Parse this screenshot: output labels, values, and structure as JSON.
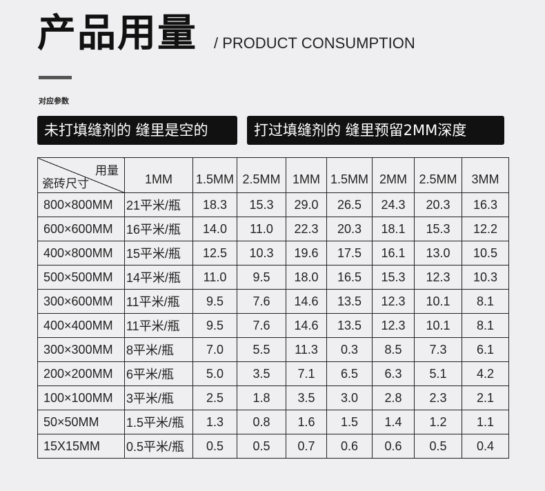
{
  "header": {
    "title": "产品用量",
    "subtitle": "/ PRODUCT CONSUMPTION",
    "params_label": "对应参数"
  },
  "tags": {
    "left": "未打填缝剂的 缝里是空的",
    "right": "打过填缝剂的 缝里预留2MM深度"
  },
  "table": {
    "corner_top": "用量",
    "corner_bottom": "瓷砖尺寸",
    "columns": [
      "1MM",
      "1.5MM",
      "2.5MM",
      "1MM",
      "1.5MM",
      "2MM",
      "2.5MM",
      "3MM"
    ],
    "rows": [
      {
        "size": "800×800MM",
        "cells": [
          "21平米/瓶",
          "18.3",
          "15.3",
          "29.0",
          "26.5",
          "24.3",
          "20.3",
          "16.3"
        ]
      },
      {
        "size": "600×600MM",
        "cells": [
          "16平米/瓶",
          "14.0",
          "11.0",
          "22.3",
          "20.3",
          "18.1",
          "15.3",
          "12.2"
        ]
      },
      {
        "size": "400×800MM",
        "cells": [
          "15平米/瓶",
          "12.5",
          "10.3",
          "19.6",
          "17.5",
          "16.1",
          "13.0",
          "10.5"
        ]
      },
      {
        "size": "500×500MM",
        "cells": [
          "14平米/瓶",
          "11.0",
          "9.5",
          "18.0",
          "16.5",
          "15.3",
          "12.3",
          "10.3"
        ]
      },
      {
        "size": "300×600MM",
        "cells": [
          "11平米/瓶",
          "9.5",
          "7.6",
          "14.6",
          "13.5",
          "12.3",
          "10.1",
          "8.1"
        ]
      },
      {
        "size": "400×400MM",
        "cells": [
          "11平米/瓶",
          "9.5",
          "7.6",
          "14.6",
          "13.5",
          "12.3",
          "10.1",
          "8.1"
        ]
      },
      {
        "size": "300×300MM",
        "cells": [
          "8平米/瓶",
          "7.0",
          "5.5",
          "11.3",
          "0.3",
          "8.5",
          "7.3",
          "6.1"
        ]
      },
      {
        "size": "200×200MM",
        "cells": [
          "6平米/瓶",
          "5.0",
          "3.5",
          "7.1",
          "6.5",
          "6.3",
          "5.1",
          "4.2"
        ]
      },
      {
        "size": "100×100MM",
        "cells": [
          "3平米/瓶",
          "2.5",
          "1.8",
          "3.5",
          "3.0",
          "2.8",
          "2.3",
          "2.1"
        ]
      },
      {
        "size": "50×50MM",
        "cells": [
          "1.5平米/瓶",
          "1.3",
          "0.8",
          "1.6",
          "1.5",
          "1.4",
          "1.2",
          "1.1"
        ]
      },
      {
        "size": "15X15MM",
        "cells": [
          "0.5平米/瓶",
          "0.5",
          "0.5",
          "0.7",
          "0.6",
          "0.6",
          "0.5",
          "0.4"
        ]
      }
    ]
  }
}
